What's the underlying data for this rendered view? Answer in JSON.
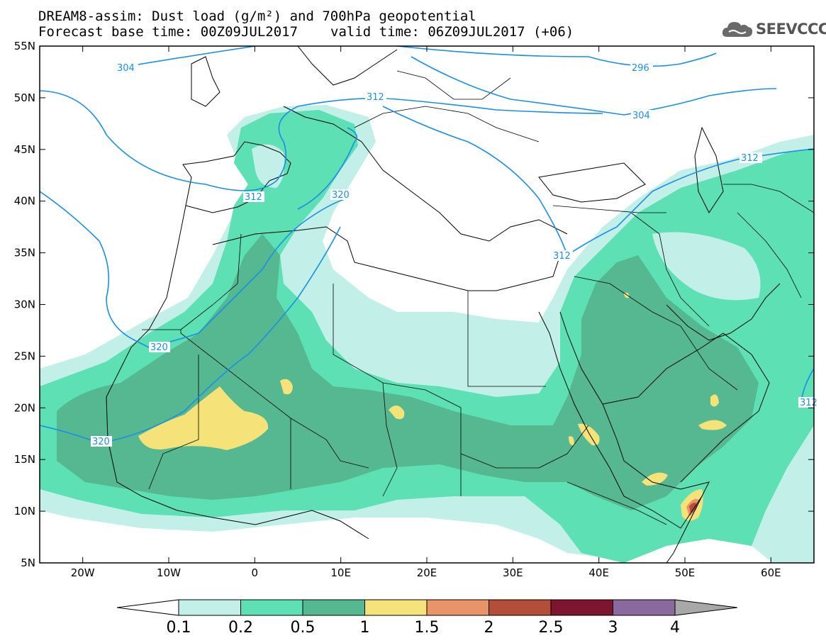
{
  "title": {
    "line1": "DREAM8-assim: Dust load (g/m²) and 700hPa geopotential",
    "base": "Forecast base time: 00Z09JUL2017",
    "valid": "valid time: 06Z09JUL2017 (+06)"
  },
  "logo": {
    "text": "SEEVCCC",
    "icon": "cloud-icon"
  },
  "map": {
    "lon_range": [
      -25,
      65
    ],
    "lat_range": [
      5,
      55
    ],
    "lon_ticks": [
      "20W",
      "10W",
      "0",
      "10E",
      "20E",
      "30E",
      "40E",
      "50E",
      "60E"
    ],
    "lat_ticks": [
      "55N",
      "50N",
      "45N",
      "40N",
      "35N",
      "30N",
      "25N",
      "20N",
      "15N",
      "10N",
      "5N"
    ],
    "contour_color": "#1a8fe6",
    "contour_labels": [
      "304",
      "296",
      "312",
      "304",
      "312",
      "312",
      "320",
      "312",
      "320",
      "320",
      "312"
    ]
  },
  "colorbar": {
    "levels": [
      "0.1",
      "0.2",
      "0.5",
      "1",
      "1.5",
      "2",
      "2.5",
      "3",
      "4"
    ],
    "colors": [
      "#c2f0e8",
      "#5ce0b4",
      "#55b890",
      "#f5e37a",
      "#e89468",
      "#b24e3a",
      "#7d1530",
      "#8a6a9e"
    ],
    "over_color": "#a8a8a8"
  }
}
